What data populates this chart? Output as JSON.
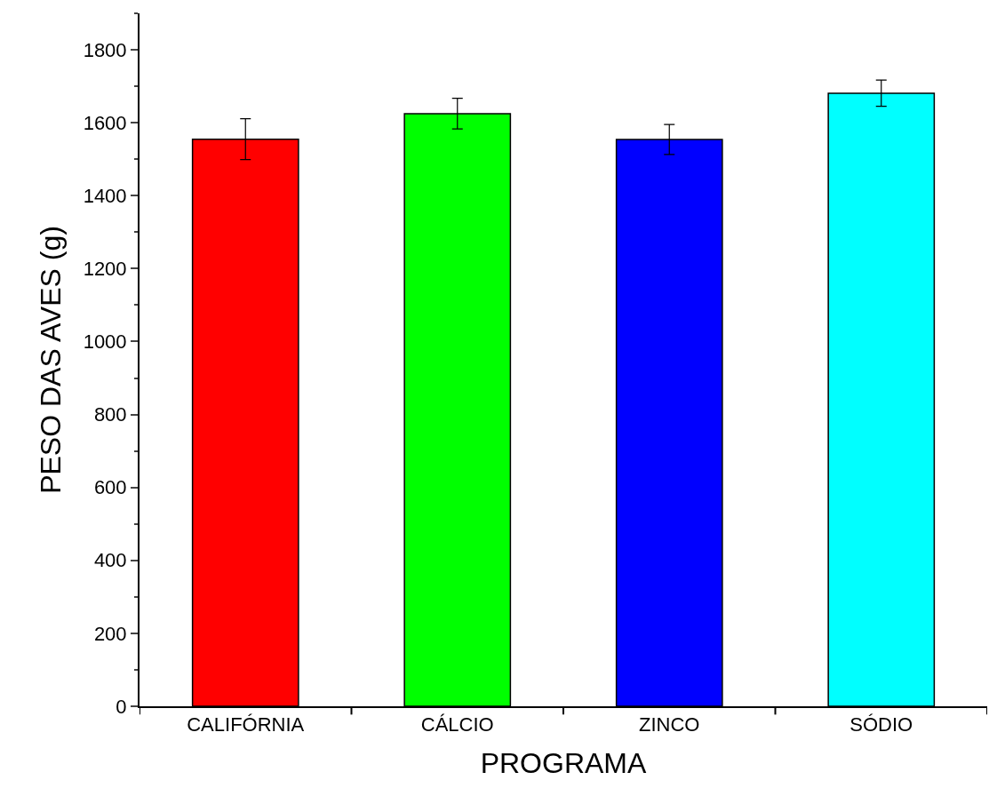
{
  "chart_data": {
    "type": "bar",
    "xlabel": "PROGRAMA",
    "ylabel": "PESO DAS AVES (g)",
    "categories": [
      "CALIFÓRNIA",
      "CÁLCIO",
      "ZINCO",
      "SÓDIO"
    ],
    "values": [
      1555,
      1625,
      1554,
      1681
    ],
    "errors": [
      56,
      42,
      41,
      36
    ],
    "colors": [
      "#ff0000",
      "#00ff00",
      "#0000ff",
      "#00ffff"
    ],
    "ylim": [
      0,
      1900
    ],
    "yticks": [
      0,
      200,
      400,
      600,
      800,
      1000,
      1200,
      1400,
      1600,
      1800
    ],
    "legend": false
  }
}
